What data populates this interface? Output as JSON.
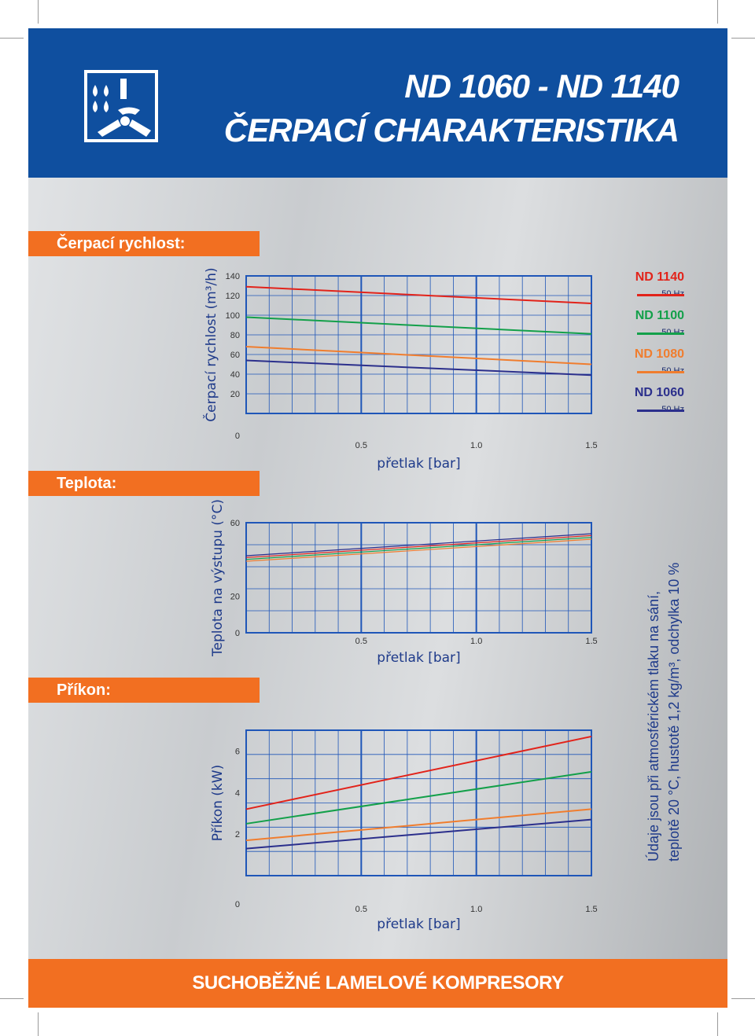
{
  "header": {
    "title_line1": "ND 1060 - ND 1140",
    "title_line2": "ČERPACÍ CHARAKTERISTIKA",
    "logo_icon": "pump-vane-logo-icon"
  },
  "sections": {
    "flow": "Čerpací rychlost:",
    "temperature": "Teplota:",
    "power": "Příkon:"
  },
  "footer": {
    "text": "SUCHOBĚŽNÉ LAMELOVÉ KOMPRESORY"
  },
  "note": {
    "line1": "Údaje jsou při atmosférickém tlaku na sání,",
    "line2": "teplotě 20 °C, hustotě 1,2 kg/m³, odchylka 10 %"
  },
  "legend": [
    {
      "name": "ND 1140",
      "freq": "50 Hz",
      "color": "#e2231a"
    },
    {
      "name": "ND 1100",
      "freq": "50 Hz",
      "color": "#13a04a"
    },
    {
      "name": "ND 1080",
      "freq": "50 Hz",
      "color": "#f07d2e"
    },
    {
      "name": "ND 1060",
      "freq": "50 Hz",
      "color": "#2b2f8c"
    }
  ],
  "colors": {
    "blue": "#0f4f9f",
    "orange": "#f26f21",
    "grid": "#1f56b8"
  },
  "chart_data": [
    {
      "type": "line",
      "xlabel": "přetlak [bar]",
      "ylabel": "Čerpací rychlost (m³/h)",
      "xlim": [
        0,
        1.5
      ],
      "ylim": [
        0,
        140
      ],
      "xticks": [
        "0.5",
        "1.0",
        "1.5"
      ],
      "yticks": [
        "0",
        "20",
        "40",
        "60",
        "80",
        "100",
        "120",
        "140"
      ],
      "series": [
        {
          "name": "ND 1140",
          "x": [
            0,
            1.5
          ],
          "y": [
            129,
            112
          ]
        },
        {
          "name": "ND 1100",
          "x": [
            0,
            1.5
          ],
          "y": [
            98,
            81
          ]
        },
        {
          "name": "ND 1080",
          "x": [
            0,
            1.5
          ],
          "y": [
            68,
            50
          ]
        },
        {
          "name": "ND 1060",
          "x": [
            0,
            1.5
          ],
          "y": [
            54,
            39
          ]
        }
      ]
    },
    {
      "type": "line",
      "xlabel": "přetlak [bar]",
      "ylabel": "Teplota na výstupu (°C)",
      "xlim": [
        0,
        1.5
      ],
      "ylim": [
        0,
        60
      ],
      "xticks": [
        "0.5",
        "1.0",
        "1.5"
      ],
      "yticks": [
        "0",
        "20",
        "60"
      ],
      "series": [
        {
          "name": "ND 1060",
          "x": [
            0,
            1.5
          ],
          "y": [
            42,
            54
          ]
        },
        {
          "name": "ND 1140",
          "x": [
            0,
            1.5
          ],
          "y": [
            41,
            53
          ]
        },
        {
          "name": "ND 1100",
          "x": [
            0,
            1.5
          ],
          "y": [
            40,
            52
          ]
        },
        {
          "name": "ND 1080",
          "x": [
            0,
            1.5
          ],
          "y": [
            39,
            51
          ]
        }
      ]
    },
    {
      "type": "line",
      "xlabel": "přetlak [bar]",
      "ylabel": "Příkon (kW)",
      "xlim": [
        0,
        1.5
      ],
      "ylim": [
        0,
        7
      ],
      "xticks": [
        "0.5",
        "1.0",
        "1.5"
      ],
      "yticks": [
        "0",
        "2",
        "4",
        "6"
      ],
      "series": [
        {
          "name": "ND 1140",
          "x": [
            0,
            1.5
          ],
          "y": [
            3.2,
            6.7
          ]
        },
        {
          "name": "ND 1100",
          "x": [
            0,
            1.5
          ],
          "y": [
            2.5,
            5.0
          ]
        },
        {
          "name": "ND 1080",
          "x": [
            0,
            1.5
          ],
          "y": [
            1.7,
            3.2
          ]
        },
        {
          "name": "ND 1060",
          "x": [
            0,
            1.5
          ],
          "y": [
            1.3,
            2.7
          ]
        }
      ]
    }
  ]
}
